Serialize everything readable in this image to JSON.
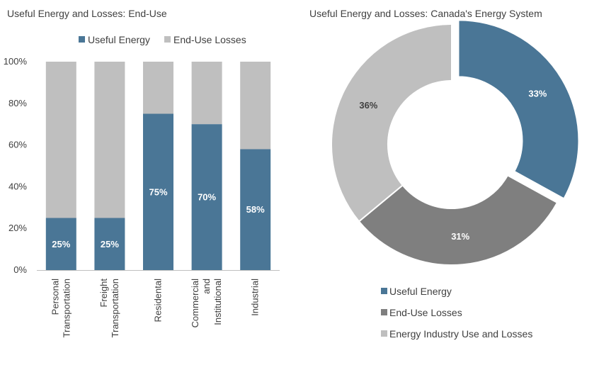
{
  "colors": {
    "useful": "#4a7696",
    "enduse_losses": "#7f7f7f",
    "bar_losses": "#bfbfbf",
    "industry": "#bfbfbf",
    "axis": "#bfbfbf"
  },
  "chart_data": [
    {
      "type": "bar",
      "stacked": true,
      "title": "Useful Energy and Losses:  End-Use",
      "categories": [
        [
          "Personal",
          "Transportation"
        ],
        [
          "Freight",
          "Transportation"
        ],
        [
          "Residental"
        ],
        [
          "Commercial",
          "and",
          "Institutional"
        ],
        [
          "Industrial"
        ]
      ],
      "series": [
        {
          "name": "Useful Energy",
          "values": [
            25,
            25,
            75,
            70,
            58
          ],
          "data_labels": [
            "25%",
            "25%",
            "75%",
            "70%",
            "58%"
          ]
        },
        {
          "name": "End-Use Losses",
          "values": [
            75,
            75,
            25,
            30,
            42
          ]
        }
      ],
      "ylim": [
        0,
        100
      ],
      "yticks": [
        "0%",
        "20%",
        "40%",
        "60%",
        "80%",
        "100%"
      ],
      "legend": "top",
      "grid": false
    },
    {
      "type": "pie",
      "donut": true,
      "title": "Useful Energy and Losses:  Canada's Energy System",
      "slices": [
        {
          "name": "Useful Energy",
          "value": 33,
          "label": "33%",
          "exploded": true
        },
        {
          "name": "End-Use Losses",
          "value": 31,
          "label": "31%"
        },
        {
          "name": "Energy Industry Use and Losses",
          "value": 36,
          "label": "36%"
        }
      ],
      "legend": "bottom-left"
    }
  ]
}
